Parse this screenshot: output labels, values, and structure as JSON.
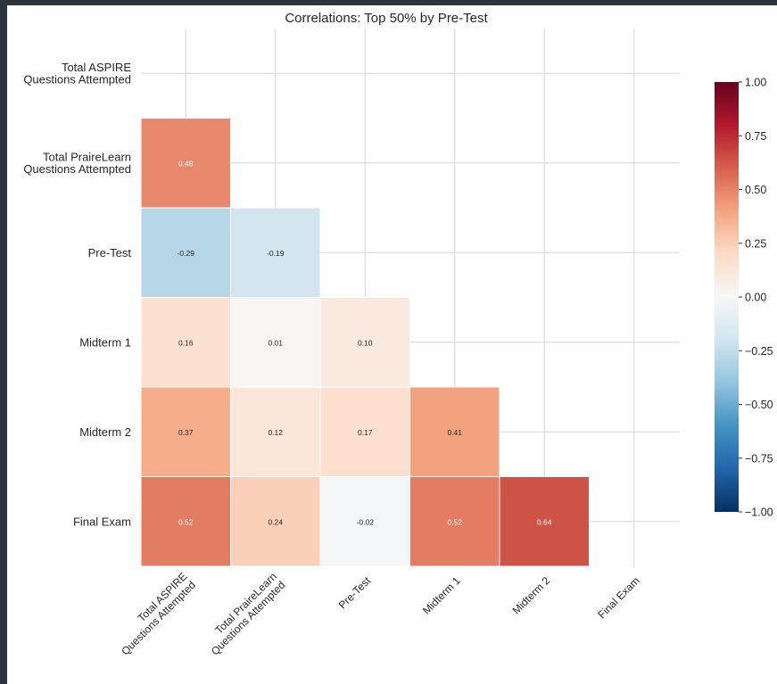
{
  "chart_data": {
    "type": "heatmap",
    "title": "Correlations: Top 50% by Pre-Test",
    "xlabel": "",
    "ylabel": "",
    "rows": [
      "Total ASPIRE\nQuestions Attempted",
      "Total PraireLearn\nQuestions Attempted",
      "Pre-Test",
      "Midterm 1",
      "Midterm 2",
      "Final Exam"
    ],
    "columns": [
      "Total ASPIRE\nQuestions Attempted",
      "Total PraireLearn\nQuestions Attempted",
      "Pre-Test",
      "Midterm 1",
      "Midterm 2",
      "Final Exam"
    ],
    "mask": "upper-triangle-including-diagonal",
    "values": [
      [
        null,
        null,
        null,
        null,
        null,
        null
      ],
      [
        0.48,
        null,
        null,
        null,
        null,
        null
      ],
      [
        -0.29,
        -0.19,
        null,
        null,
        null,
        null
      ],
      [
        0.16,
        0.01,
        0.1,
        null,
        null,
        null
      ],
      [
        0.37,
        0.12,
        0.17,
        0.41,
        null,
        null
      ],
      [
        0.52,
        0.24,
        -0.02,
        0.52,
        0.64,
        null
      ]
    ],
    "cell_labels": [
      [
        null,
        null,
        null,
        null,
        null,
        null
      ],
      [
        "0.48",
        null,
        null,
        null,
        null,
        null
      ],
      [
        "-0.29",
        "-0.19",
        null,
        null,
        null,
        null
      ],
      [
        "0.16",
        "0.01",
        "0.10",
        null,
        null,
        null
      ],
      [
        "0.37",
        "0.12",
        "0.17",
        "0.41",
        null,
        null
      ],
      [
        "0.52",
        "0.24",
        "-0.02",
        "0.52",
        "0.64",
        null
      ]
    ],
    "colormap": "RdBu_r",
    "colorbar": {
      "range": [
        -1.0,
        1.0
      ],
      "ticks": [
        1.0,
        0.75,
        0.5,
        0.25,
        0.0,
        -0.25,
        -0.5,
        -0.75,
        -1.0
      ],
      "tick_labels": [
        "1.00",
        "0.75",
        "0.50",
        "0.25",
        "0.00",
        "−0.25",
        "−0.50",
        "−0.75",
        "−1.00"
      ]
    },
    "grid": true,
    "x_tick_rotation_deg": 45,
    "colors": {
      "cmap_stops": [
        "#053061",
        "#2166ac",
        "#4393c3",
        "#92c5de",
        "#d1e5f0",
        "#f7f7f7",
        "#fddbc7",
        "#f4a582",
        "#d6604d",
        "#b2182b",
        "#67001f"
      ],
      "grid": "#dcdcdc",
      "text": "#262626",
      "page_background": "#2d343b"
    }
  }
}
